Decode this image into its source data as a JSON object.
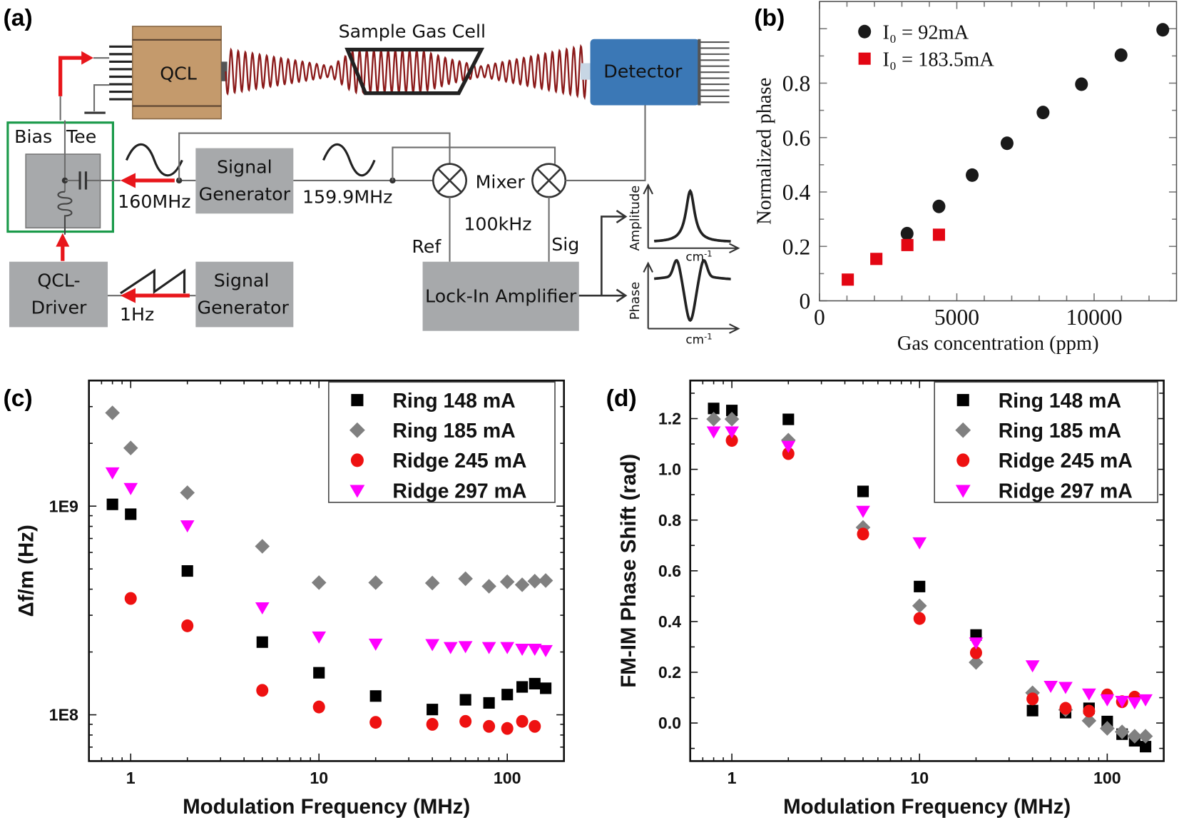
{
  "panels": {
    "a": "(a)",
    "b": "(b)",
    "c": "(c)",
    "d": "(d)"
  },
  "diagram": {
    "qcl": "QCL",
    "gas_cell": "Sample Gas Cell",
    "detector": "Detector",
    "bias": "Bias",
    "tee": "Tee",
    "siggen1_line1": "Signal",
    "siggen1_line2": "Generator",
    "freq1": "160MHz",
    "freq2": "159.9MHz",
    "mixer": "Mixer",
    "if_freq": "100kHz",
    "ref": "Ref",
    "sig": "Sig",
    "lockin": "Lock-In Amplifier",
    "driver_line1": "QCL-",
    "driver_line2": "Driver",
    "siggen2_line1": "Signal",
    "siggen2_line2": "Generator",
    "ramp_freq": "1Hz",
    "amp_axis": "Amplitude",
    "phase_axis": "Phase",
    "wavenumber_unit": "cm",
    "wavenumber_exp": "-1",
    "colors": {
      "qcl": "#c49a6c",
      "detector": "#3b78b6",
      "bias_tee_border": "#1a9a4a",
      "arrows": "#e8161b",
      "beam": "#8b1a1a",
      "boxes": "#a7a9ab"
    }
  },
  "chart_data": [
    {
      "panel": "b",
      "type": "scatter",
      "xlabel": "Gas concentration (ppm)",
      "ylabel": "Normalized phase",
      "xlim": [
        0,
        13000
      ],
      "ylim": [
        0,
        1.1
      ],
      "xticks": [
        0,
        5000,
        10000
      ],
      "xtick_labels": [
        "0",
        "5000",
        "10000"
      ],
      "yticks": [
        0,
        0.2,
        0.4,
        0.6,
        0.8
      ],
      "ytick_labels": [
        "0",
        "0.2",
        "0.4",
        "0.6",
        "0.8"
      ],
      "legend": "top-left",
      "series": [
        {
          "name": "I₀ = 92mA",
          "marker": "circle",
          "color": "#1a1a1a",
          "x": [
            3190,
            4350,
            5560,
            6830,
            8140,
            9540,
            10980,
            12500
          ],
          "y": [
            0.247,
            0.347,
            0.462,
            0.579,
            0.692,
            0.796,
            0.903,
            0.996
          ]
        },
        {
          "name": "I₀ = 183.5mA",
          "marker": "square",
          "color": "#e30613",
          "x": [
            1030,
            2070,
            3200,
            4350
          ],
          "y": [
            0.078,
            0.154,
            0.205,
            0.243
          ]
        }
      ]
    },
    {
      "panel": "c",
      "type": "scatter",
      "xlabel": "Modulation Frequency (MHz)",
      "ylabel": "Δf/m (Hz)",
      "xscale": "log",
      "yscale": "log",
      "xlim": [
        0.6,
        200
      ],
      "ylim": [
        60000000.0,
        4000000000.0
      ],
      "xticks": [
        1,
        10,
        100
      ],
      "xtick_labels": [
        "1",
        "10",
        "100"
      ],
      "yticks": [
        100000000.0,
        1000000000.0
      ],
      "ytick_labels": [
        "1E8",
        "1E9"
      ],
      "legend": "top-right",
      "series": [
        {
          "name": "Ring 148 mA",
          "marker": "square",
          "color": "#000000",
          "x": [
            0.8,
            1,
            2,
            5,
            10,
            20,
            40,
            60,
            80,
            100,
            120,
            140,
            160
          ],
          "y": [
            1020000000.0,
            915000000.0,
            489000000.0,
            223000000.0,
            159000000.0,
            123000000.0,
            106000000.0,
            118000000.0,
            114000000.0,
            125000000.0,
            136000000.0,
            141000000.0,
            134000000.0
          ]
        },
        {
          "name": "Ring 185 mA",
          "marker": "diamond",
          "color": "#808080",
          "x": [
            0.8,
            1,
            2,
            5,
            10,
            20,
            40,
            60,
            80,
            100,
            120,
            140,
            160
          ],
          "y": [
            2800000000.0,
            1900000000.0,
            1160000000.0,
            642000000.0,
            430000000.0,
            430000000.0,
            428000000.0,
            449000000.0,
            413000000.0,
            434000000.0,
            420000000.0,
            437000000.0,
            440000000.0
          ]
        },
        {
          "name": "Ridge 245 mA",
          "marker": "circle",
          "color": "#ee1111",
          "x": [
            1,
            2,
            5,
            10,
            20,
            40,
            60,
            80,
            100,
            120,
            140
          ],
          "y": [
            361000000.0,
            267000000.0,
            131000000.0,
            109000000.0,
            92000000.0,
            90000000.0,
            93000000.0,
            88000000.0,
            86000000.0,
            93000000.0,
            88000000.0
          ]
        },
        {
          "name": "Ridge 297 mA",
          "marker": "triangle-down",
          "color": "#ff00ff",
          "x": [
            0.8,
            1,
            2,
            5,
            10,
            20,
            40,
            50,
            60,
            80,
            100,
            120,
            140,
            160
          ],
          "y": [
            1450000000.0,
            1220000000.0,
            808000000.0,
            327000000.0,
            237000000.0,
            219000000.0,
            218000000.0,
            211000000.0,
            213000000.0,
            211000000.0,
            211000000.0,
            207000000.0,
            207000000.0,
            204000000.0
          ]
        }
      ]
    },
    {
      "panel": "d",
      "type": "scatter",
      "xlabel": "Modulation Frequency (MHz)",
      "ylabel": "FM-IM Phase Shift (rad)",
      "xscale": "log",
      "xlim": [
        0.6,
        200
      ],
      "ylim": [
        -0.15,
        1.35
      ],
      "xticks": [
        1,
        10,
        100
      ],
      "xtick_labels": [
        "1",
        "10",
        "100"
      ],
      "yticks": [
        0,
        0.2,
        0.4,
        0.6,
        0.8,
        1.0,
        1.2
      ],
      "ytick_labels": [
        "0.0",
        "0.2",
        "0.4",
        "0.6",
        "0.8",
        "1.0",
        "1.2"
      ],
      "legend": "top-right",
      "series": [
        {
          "name": "Ring 148 mA",
          "marker": "square",
          "color": "#000000",
          "x": [
            0.8,
            1,
            2,
            5,
            10,
            20,
            40,
            60,
            80,
            100,
            120,
            140,
            160
          ],
          "y": [
            1.24,
            1.232,
            1.197,
            0.913,
            0.538,
            0.347,
            0.049,
            0.041,
            0.058,
            0.006,
            -0.044,
            -0.07,
            -0.093
          ]
        },
        {
          "name": "Ring 185 mA",
          "marker": "diamond",
          "color": "#808080",
          "x": [
            0.8,
            1,
            2,
            5,
            10,
            20,
            40,
            60,
            80,
            100,
            120,
            140,
            160
          ],
          "y": [
            1.198,
            1.198,
            1.115,
            0.771,
            0.462,
            0.239,
            0.119,
            0.052,
            0.009,
            -0.021,
            -0.035,
            -0.052,
            -0.052
          ]
        },
        {
          "name": "Ridge 245 mA",
          "marker": "circle",
          "color": "#ee1111",
          "x": [
            1,
            2,
            5,
            10,
            20,
            40,
            60,
            80,
            100,
            120,
            140
          ],
          "y": [
            1.114,
            1.062,
            0.745,
            0.412,
            0.277,
            0.095,
            0.058,
            0.047,
            0.111,
            0.084,
            0.102
          ]
        },
        {
          "name": "Ridge 297 mA",
          "marker": "triangle-down",
          "color": "#ff00ff",
          "x": [
            0.8,
            1,
            2,
            5,
            10,
            20,
            40,
            50,
            60,
            80,
            100,
            120,
            140,
            160
          ],
          "y": [
            1.149,
            1.149,
            1.092,
            0.836,
            0.712,
            0.317,
            0.227,
            0.146,
            0.142,
            0.116,
            0.093,
            0.087,
            0.081,
            0.093
          ]
        }
      ]
    }
  ]
}
